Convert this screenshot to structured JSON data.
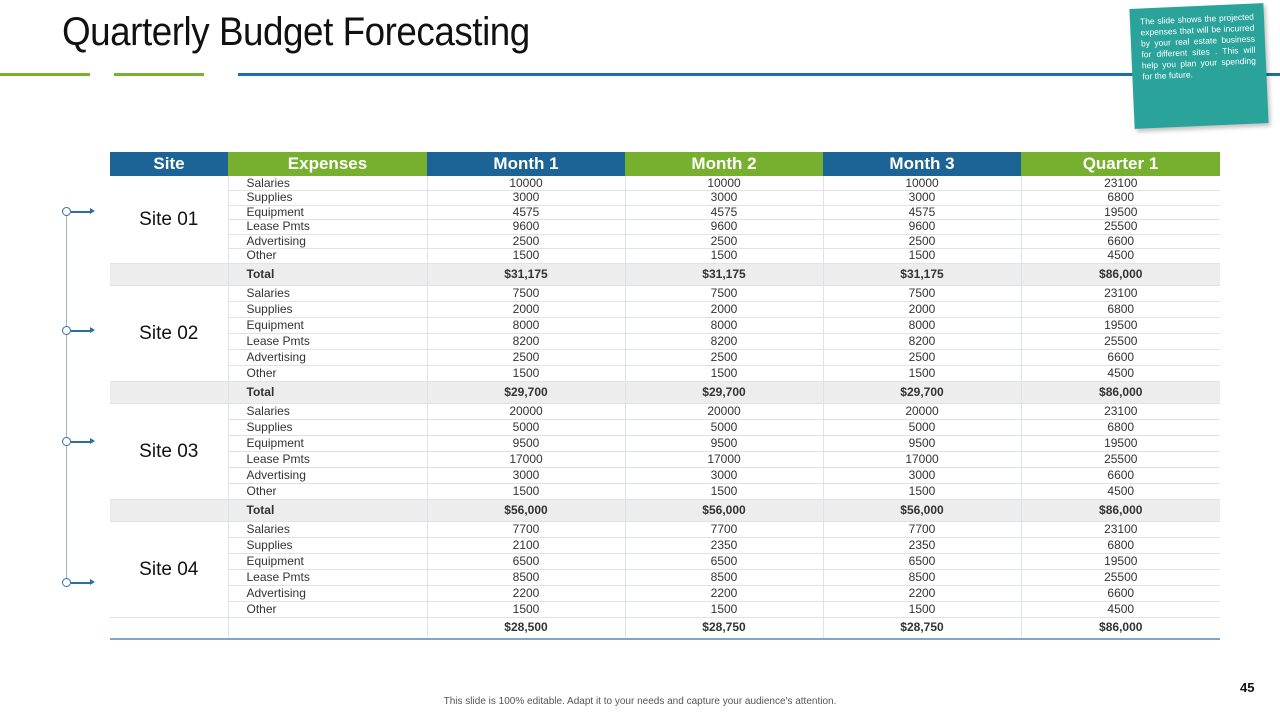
{
  "title": "Quarterly Budget Forecasting",
  "note_text": "The slide shows the projected expenses that will be incurred by your real estate business for different sites . This will help you plan your spending for the future.",
  "table": {
    "headers": [
      "Site",
      "Expenses",
      "Month 1",
      "Month 2",
      "Month 3",
      "Quarter 1"
    ],
    "sites": [
      {
        "name": "Site 01",
        "rows": [
          {
            "expense": "Salaries",
            "m1": "10000",
            "m2": "10000",
            "m3": "10000",
            "q1": "23100"
          },
          {
            "expense": "Supplies",
            "m1": "3000",
            "m2": "3000",
            "m3": "3000",
            "q1": "6800"
          },
          {
            "expense": "Equipment",
            "m1": "4575",
            "m2": "4575",
            "m3": "4575",
            "q1": "19500"
          },
          {
            "expense": "Lease Pmts",
            "m1": "9600",
            "m2": "9600",
            "m3": "9600",
            "q1": "25500"
          },
          {
            "expense": "Advertising",
            "m1": "2500",
            "m2": "2500",
            "m3": "2500",
            "q1": "6600"
          },
          {
            "expense": "Other",
            "m1": "1500",
            "m2": "1500",
            "m3": "1500",
            "q1": "4500"
          }
        ],
        "total": {
          "label": "Total",
          "m1": "$31,175",
          "m2": "$31,175",
          "m3": "$31,175",
          "q1": "$86,000"
        }
      },
      {
        "name": "Site 02",
        "rows": [
          {
            "expense": "Salaries",
            "m1": "7500",
            "m2": "7500",
            "m3": "7500",
            "q1": "23100"
          },
          {
            "expense": "Supplies",
            "m1": "2000",
            "m2": "2000",
            "m3": "2000",
            "q1": "6800"
          },
          {
            "expense": "Equipment",
            "m1": "8000",
            "m2": "8000",
            "m3": "8000",
            "q1": "19500"
          },
          {
            "expense": "Lease Pmts",
            "m1": "8200",
            "m2": "8200",
            "m3": "8200",
            "q1": "25500"
          },
          {
            "expense": "Advertising",
            "m1": "2500",
            "m2": "2500",
            "m3": "2500",
            "q1": "6600"
          },
          {
            "expense": "Other",
            "m1": "1500",
            "m2": "1500",
            "m3": "1500",
            "q1": "4500"
          }
        ],
        "total": {
          "label": "Total",
          "m1": "$29,700",
          "m2": "$29,700",
          "m3": "$29,700",
          "q1": "$86,000"
        }
      },
      {
        "name": "Site 03",
        "rows": [
          {
            "expense": "Salaries",
            "m1": "20000",
            "m2": "20000",
            "m3": "20000",
            "q1": "23100"
          },
          {
            "expense": "Supplies",
            "m1": "5000",
            "m2": "5000",
            "m3": "5000",
            "q1": "6800"
          },
          {
            "expense": "Equipment",
            "m1": "9500",
            "m2": "9500",
            "m3": "9500",
            "q1": "19500"
          },
          {
            "expense": "Lease Pmts",
            "m1": "17000",
            "m2": "17000",
            "m3": "17000",
            "q1": "25500"
          },
          {
            "expense": "Advertising",
            "m1": "3000",
            "m2": "3000",
            "m3": "3000",
            "q1": "6600"
          },
          {
            "expense": "Other",
            "m1": "1500",
            "m2": "1500",
            "m3": "1500",
            "q1": "4500"
          }
        ],
        "total": {
          "label": "Total",
          "m1": "$56,000",
          "m2": "$56,000",
          "m3": "$56,000",
          "q1": "$86,000"
        }
      },
      {
        "name": "Site 04",
        "rows": [
          {
            "expense": "Salaries",
            "m1": "7700",
            "m2": "7700",
            "m3": "7700",
            "q1": "23100"
          },
          {
            "expense": "Supplies",
            "m1": "2100",
            "m2": "2350",
            "m3": "2350",
            "q1": "6800"
          },
          {
            "expense": "Equipment",
            "m1": "6500",
            "m2": "6500",
            "m3": "6500",
            "q1": "19500"
          },
          {
            "expense": "Lease Pmts",
            "m1": "8500",
            "m2": "8500",
            "m3": "8500",
            "q1": "25500"
          },
          {
            "expense": "Advertising",
            "m1": "2200",
            "m2": "2200",
            "m3": "2200",
            "q1": "6600"
          },
          {
            "expense": "Other",
            "m1": "1500",
            "m2": "1500",
            "m3": "1500",
            "q1": "4500"
          }
        ],
        "total": {
          "label": "",
          "m1": "$28,500",
          "m2": "$28,750",
          "m3": "$28,750",
          "q1": "$86,000"
        }
      }
    ]
  },
  "footer_text": "This slide is 100% editable. Adapt it to your needs and capture your audience's attention.",
  "page_number": "45",
  "colors": {
    "brand_blue": "#1c6495",
    "brand_green": "#77b02f",
    "note_teal": "#2aa39a"
  }
}
